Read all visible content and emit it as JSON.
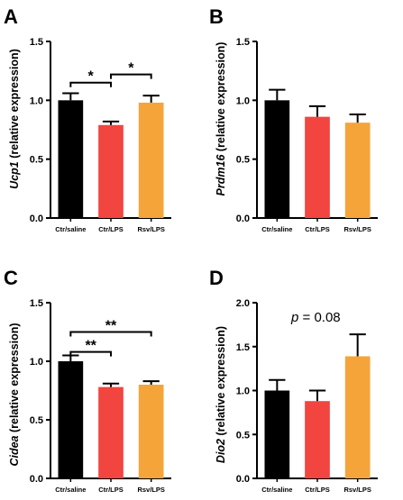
{
  "colors": {
    "black": "#000000",
    "red": "#f2453f",
    "orange": "#f5a43a"
  },
  "chart_data": [
    {
      "panel": "A",
      "type": "bar",
      "ylabel_gene": "Ucp1",
      "ylabel_rest": " (relative expression)",
      "categories": [
        "Ctr/saline",
        "Ctr/LPS",
        "Rsv/LPS"
      ],
      "values": [
        1.0,
        0.79,
        0.98
      ],
      "errors": [
        0.06,
        0.03,
        0.06
      ],
      "bar_colors": [
        "#000000",
        "#f2453f",
        "#f5a43a"
      ],
      "ylim": [
        0,
        1.5
      ],
      "yticks": [
        "0.0",
        "0.5",
        "1.0",
        "1.5"
      ],
      "brackets": [
        {
          "from": 0,
          "to": 1,
          "y": 1.15,
          "label": "*"
        },
        {
          "from": 1,
          "to": 2,
          "y": 1.22,
          "label": "*"
        }
      ],
      "annotation": ""
    },
    {
      "panel": "B",
      "type": "bar",
      "ylabel_gene": "Prdm16",
      "ylabel_rest": " (relative expression)",
      "categories": [
        "Ctr/saline",
        "Ctr/LPS",
        "Rsv/LPS"
      ],
      "values": [
        1.0,
        0.86,
        0.81
      ],
      "errors": [
        0.09,
        0.09,
        0.07
      ],
      "bar_colors": [
        "#000000",
        "#f2453f",
        "#f5a43a"
      ],
      "ylim": [
        0,
        1.5
      ],
      "yticks": [
        "0.0",
        "0.5",
        "1.0",
        "1.5"
      ],
      "brackets": [],
      "annotation": ""
    },
    {
      "panel": "C",
      "type": "bar",
      "ylabel_gene": "Cidea",
      "ylabel_rest": " (relative expression)",
      "categories": [
        "Ctr/saline",
        "Ctr/LPS",
        "Rsv/LPS"
      ],
      "values": [
        1.0,
        0.78,
        0.8
      ],
      "errors": [
        0.05,
        0.03,
        0.03
      ],
      "bar_colors": [
        "#000000",
        "#f2453f",
        "#f5a43a"
      ],
      "ylim": [
        0,
        1.5
      ],
      "yticks": [
        "0.0",
        "0.5",
        "1.0",
        "1.5"
      ],
      "brackets": [
        {
          "from": 0,
          "to": 1,
          "y": 1.08,
          "label": "**"
        },
        {
          "from": 0,
          "to": 2,
          "y": 1.25,
          "label": "**"
        }
      ],
      "annotation": ""
    },
    {
      "panel": "D",
      "type": "bar",
      "ylabel_gene": "Dio2",
      "ylabel_rest": " (relative expression)",
      "categories": [
        "Ctr/saline",
        "Ctr/LPS",
        "Rsv/LPS"
      ],
      "values": [
        1.0,
        0.88,
        1.39
      ],
      "errors": [
        0.12,
        0.12,
        0.25
      ],
      "bar_colors": [
        "#000000",
        "#f2453f",
        "#f5a43a"
      ],
      "ylim": [
        0,
        2.0
      ],
      "yticks": [
        "0.0",
        "0.5",
        "1.0",
        "1.5",
        "2.0"
      ],
      "brackets": [],
      "annotation_italic": "p",
      "annotation": " = 0.08"
    }
  ]
}
